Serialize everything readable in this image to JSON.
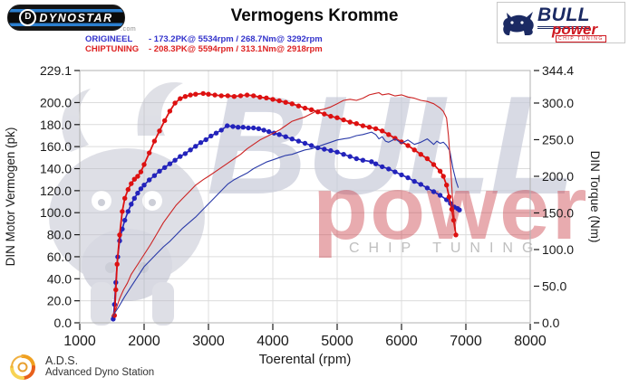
{
  "header": {
    "dynostar_text": "DYNOSTAR",
    "dynostar_d": "D",
    "dynostar_domain": ".com",
    "title": "Vermogens Kromme",
    "legend": [
      {
        "name": "ORIGINEEL",
        "detail": "- 173.2PK@ 5534rpm / 268.7Nm@ 3292rpm",
        "color": "#3333cc"
      },
      {
        "name": "CHIPTUNING",
        "detail": "- 208.3PK@ 5594rpm / 313.1Nm@ 2918rpm",
        "color": "#dd2222"
      }
    ],
    "bullpower_logo": {
      "bull": "BULL",
      "power": "power",
      "chip": "CHIP TUNING"
    }
  },
  "watermark": {
    "bull": "BULL",
    "power": "power",
    "chip": "CHIP TUNING"
  },
  "footer": {
    "ads_abbr": "A.D.S.",
    "ads_full": "Advanced Dyno Station"
  },
  "colors": {
    "origineel": "#2323bb",
    "origineel_thin": "#2a3aa8",
    "chiptuning": "#dd1111",
    "chiptuning_thin": "#cc2222",
    "grid": "#dcdcdc",
    "plot_border": "#b0b0b0",
    "tick_text": "#1a1a1a"
  },
  "chart_data": {
    "type": "line",
    "title": "Vermogens Kromme",
    "xlabel": "Toerental (rpm)",
    "ylabel_left": "DIN Motor Vermogen (pk)",
    "ylabel_right": "DIN Torque (Nm)",
    "x_range": [
      1000,
      8000
    ],
    "y_left_range": [
      0,
      229.1
    ],
    "y_right_range": [
      0,
      344.4
    ],
    "x_tick_labels": [
      "1000",
      "2000",
      "3000",
      "4000",
      "5000",
      "6000",
      "7000",
      "8000"
    ],
    "y_left_tick_labels": [
      "229.1",
      "200.0",
      "180.0",
      "160.0",
      "140.0",
      "120.0",
      "100.0",
      "80.0",
      "60.0",
      "40.0",
      "20.0",
      "0.0"
    ],
    "y_right_tick_labels": [
      "344.4",
      "300.0",
      "250.0",
      "200.0",
      "150.0",
      "100.0",
      "50.0",
      "0.0"
    ],
    "grid": true,
    "legend_position": "top-left",
    "peaks": {
      "origineel": "173.2PK@ 5534rpm / 268.7Nm@ 3292rpm",
      "chiptuning": "208.3PK@ 5594rpm / 313.1Nm@ 2918rpm"
    },
    "series": [
      {
        "name": "origineel-torque-nm",
        "axis": "right",
        "unit": "Nm",
        "color": "#2323bb",
        "width": 1.6,
        "markers": true,
        "points": [
          [
            1520,
            5
          ],
          [
            1540,
            25
          ],
          [
            1560,
            55
          ],
          [
            1590,
            90
          ],
          [
            1620,
            112
          ],
          [
            1660,
            128
          ],
          [
            1700,
            140
          ],
          [
            1750,
            152
          ],
          [
            1800,
            162
          ],
          [
            1850,
            170
          ],
          [
            1900,
            177
          ],
          [
            1950,
            183
          ],
          [
            2000,
            188
          ],
          [
            2080,
            195
          ],
          [
            2160,
            201
          ],
          [
            2240,
            207
          ],
          [
            2320,
            212
          ],
          [
            2400,
            217
          ],
          [
            2480,
            222
          ],
          [
            2560,
            227
          ],
          [
            2640,
            231
          ],
          [
            2720,
            236
          ],
          [
            2800,
            241
          ],
          [
            2880,
            246
          ],
          [
            2960,
            250
          ],
          [
            3040,
            255
          ],
          [
            3120,
            259
          ],
          [
            3200,
            263
          ],
          [
            3292,
            269
          ],
          [
            3380,
            268
          ],
          [
            3460,
            267
          ],
          [
            3540,
            267
          ],
          [
            3620,
            266
          ],
          [
            3700,
            266
          ],
          [
            3780,
            265
          ],
          [
            3860,
            263
          ],
          [
            3940,
            261
          ],
          [
            4020,
            259
          ],
          [
            4100,
            257
          ],
          [
            4200,
            254
          ],
          [
            4300,
            251
          ],
          [
            4400,
            248
          ],
          [
            4500,
            245
          ],
          [
            4600,
            242
          ],
          [
            4700,
            239
          ],
          [
            4800,
            237
          ],
          [
            4900,
            235
          ],
          [
            5000,
            233
          ],
          [
            5100,
            230
          ],
          [
            5200,
            227
          ],
          [
            5300,
            224
          ],
          [
            5400,
            222
          ],
          [
            5534,
            220
          ],
          [
            5600,
            217
          ],
          [
            5700,
            213
          ],
          [
            5800,
            210
          ],
          [
            5900,
            206
          ],
          [
            6000,
            202
          ],
          [
            6100,
            198
          ],
          [
            6200,
            193
          ],
          [
            6300,
            189
          ],
          [
            6400,
            184
          ],
          [
            6500,
            179
          ],
          [
            6600,
            174
          ],
          [
            6700,
            168
          ],
          [
            6760,
            163
          ],
          [
            6820,
            158
          ],
          [
            6870,
            156
          ],
          [
            6900,
            154
          ]
        ]
      },
      {
        "name": "chiptuning-torque-nm",
        "axis": "right",
        "unit": "Nm",
        "color": "#dd1111",
        "width": 1.8,
        "markers": true,
        "points": [
          [
            1540,
            10
          ],
          [
            1560,
            45
          ],
          [
            1580,
            80
          ],
          [
            1620,
            120
          ],
          [
            1660,
            152
          ],
          [
            1700,
            170
          ],
          [
            1750,
            182
          ],
          [
            1800,
            190
          ],
          [
            1850,
            196
          ],
          [
            1900,
            200
          ],
          [
            1950,
            206
          ],
          [
            2000,
            216
          ],
          [
            2080,
            232
          ],
          [
            2160,
            248
          ],
          [
            2240,
            262
          ],
          [
            2320,
            276
          ],
          [
            2400,
            289
          ],
          [
            2480,
            300
          ],
          [
            2560,
            306
          ],
          [
            2640,
            309
          ],
          [
            2720,
            311
          ],
          [
            2800,
            312
          ],
          [
            2918,
            313
          ],
          [
            3000,
            312
          ],
          [
            3100,
            311
          ],
          [
            3200,
            310
          ],
          [
            3300,
            310
          ],
          [
            3400,
            309
          ],
          [
            3500,
            310
          ],
          [
            3600,
            311
          ],
          [
            3700,
            310
          ],
          [
            3800,
            308
          ],
          [
            3900,
            307
          ],
          [
            4000,
            305
          ],
          [
            4100,
            303
          ],
          [
            4200,
            301
          ],
          [
            4300,
            299
          ],
          [
            4400,
            296
          ],
          [
            4500,
            293
          ],
          [
            4600,
            291
          ],
          [
            4700,
            288
          ],
          [
            4800,
            285
          ],
          [
            4900,
            282
          ],
          [
            5000,
            280
          ],
          [
            5100,
            277
          ],
          [
            5200,
            274
          ],
          [
            5300,
            272
          ],
          [
            5400,
            269
          ],
          [
            5500,
            267
          ],
          [
            5600,
            265
          ],
          [
            5700,
            262
          ],
          [
            5800,
            257
          ],
          [
            5900,
            252
          ],
          [
            6000,
            247
          ],
          [
            6100,
            242
          ],
          [
            6200,
            236
          ],
          [
            6300,
            230
          ],
          [
            6400,
            224
          ],
          [
            6500,
            216
          ],
          [
            6600,
            207
          ],
          [
            6650,
            200
          ],
          [
            6700,
            188
          ],
          [
            6740,
            172
          ],
          [
            6780,
            155
          ],
          [
            6810,
            140
          ],
          [
            6845,
            120
          ]
        ]
      },
      {
        "name": "origineel-power-pk",
        "axis": "left",
        "unit": "pk",
        "color": "#2a3aa8",
        "width": 1.1,
        "markers": false,
        "points": [
          [
            1500,
            5
          ],
          [
            1600,
            14
          ],
          [
            1700,
            24
          ],
          [
            1800,
            33
          ],
          [
            1900,
            42
          ],
          [
            2000,
            51
          ],
          [
            2100,
            57
          ],
          [
            2200,
            63
          ],
          [
            2300,
            69
          ],
          [
            2400,
            74
          ],
          [
            2500,
            80
          ],
          [
            2600,
            86
          ],
          [
            2700,
            91
          ],
          [
            2800,
            96
          ],
          [
            2900,
            102
          ],
          [
            3000,
            108
          ],
          [
            3100,
            114
          ],
          [
            3200,
            120
          ],
          [
            3300,
            126
          ],
          [
            3400,
            130
          ],
          [
            3500,
            133
          ],
          [
            3600,
            136
          ],
          [
            3700,
            140
          ],
          [
            3800,
            143
          ],
          [
            3900,
            146
          ],
          [
            4000,
            148
          ],
          [
            4100,
            150
          ],
          [
            4200,
            152
          ],
          [
            4300,
            153
          ],
          [
            4400,
            155
          ],
          [
            4500,
            157
          ],
          [
            4600,
            158
          ],
          [
            4700,
            160
          ],
          [
            4800,
            162
          ],
          [
            4900,
            164
          ],
          [
            5000,
            166
          ],
          [
            5100,
            167
          ],
          [
            5200,
            168
          ],
          [
            5300,
            170
          ],
          [
            5400,
            171
          ],
          [
            5534,
            173.2
          ],
          [
            5600,
            171
          ],
          [
            5650,
            167
          ],
          [
            5700,
            169
          ],
          [
            5750,
            165
          ],
          [
            5800,
            164
          ],
          [
            5900,
            167
          ],
          [
            6000,
            163
          ],
          [
            6100,
            166
          ],
          [
            6200,
            162
          ],
          [
            6300,
            164
          ],
          [
            6400,
            167
          ],
          [
            6500,
            162
          ],
          [
            6550,
            165
          ],
          [
            6600,
            163
          ],
          [
            6650,
            164
          ],
          [
            6700,
            161
          ],
          [
            6750,
            156
          ],
          [
            6800,
            140
          ],
          [
            6850,
            128
          ],
          [
            6880,
            123
          ]
        ]
      },
      {
        "name": "chiptuning-power-pk",
        "axis": "left",
        "unit": "pk",
        "color": "#cc2222",
        "width": 1.1,
        "markers": false,
        "points": [
          [
            1500,
            6
          ],
          [
            1560,
            12
          ],
          [
            1620,
            22
          ],
          [
            1680,
            30
          ],
          [
            1740,
            36
          ],
          [
            1800,
            44
          ],
          [
            1900,
            53
          ],
          [
            2000,
            62
          ],
          [
            2100,
            71
          ],
          [
            2200,
            81
          ],
          [
            2300,
            91
          ],
          [
            2400,
            99
          ],
          [
            2500,
            107
          ],
          [
            2600,
            113
          ],
          [
            2700,
            119
          ],
          [
            2800,
            125
          ],
          [
            2918,
            130
          ],
          [
            3000,
            133
          ],
          [
            3100,
            137
          ],
          [
            3200,
            141
          ],
          [
            3300,
            145
          ],
          [
            3400,
            149
          ],
          [
            3500,
            153
          ],
          [
            3600,
            158
          ],
          [
            3700,
            162
          ],
          [
            3800,
            166
          ],
          [
            3900,
            169
          ],
          [
            4000,
            172
          ],
          [
            4100,
            175
          ],
          [
            4200,
            179
          ],
          [
            4300,
            183
          ],
          [
            4400,
            185
          ],
          [
            4500,
            187
          ],
          [
            4600,
            190
          ],
          [
            4700,
            193
          ],
          [
            4800,
            194
          ],
          [
            4900,
            196
          ],
          [
            5000,
            199
          ],
          [
            5100,
            202
          ],
          [
            5200,
            203
          ],
          [
            5300,
            202
          ],
          [
            5400,
            204
          ],
          [
            5500,
            207
          ],
          [
            5594,
            208.3
          ],
          [
            5650,
            209
          ],
          [
            5700,
            207
          ],
          [
            5800,
            208
          ],
          [
            5900,
            206
          ],
          [
            6000,
            207
          ],
          [
            6100,
            205
          ],
          [
            6200,
            204
          ],
          [
            6300,
            202
          ],
          [
            6400,
            201
          ],
          [
            6500,
            199
          ],
          [
            6550,
            197
          ],
          [
            6600,
            195
          ],
          [
            6650,
            192
          ],
          [
            6700,
            186
          ],
          [
            6730,
            170
          ],
          [
            6760,
            145
          ],
          [
            6790,
            115
          ],
          [
            6820,
            95
          ],
          [
            6840,
            85
          ]
        ]
      }
    ]
  }
}
